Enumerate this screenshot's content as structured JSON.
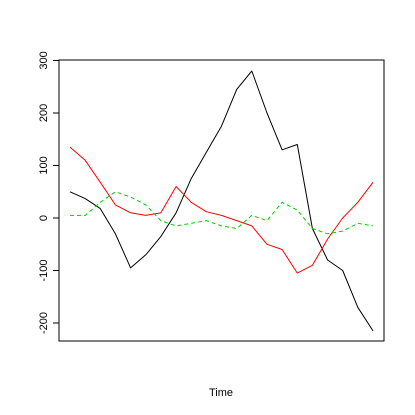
{
  "chart_data": {
    "type": "line",
    "title": "",
    "xlabel": "Time",
    "ylabel": "",
    "ylim": [
      -230,
      300
    ],
    "yticks": [
      300,
      200,
      100,
      0,
      -100,
      -200
    ],
    "x": [
      0,
      5,
      10,
      15,
      20,
      25,
      30,
      35,
      40,
      45,
      50,
      55,
      60,
      65,
      70,
      75,
      80,
      85,
      90,
      95,
      100
    ],
    "xlim": [
      0,
      100
    ],
    "grid": false,
    "legend": "none",
    "series": [
      {
        "color": "#000000",
        "linestyle": "solid",
        "values": [
          50,
          37,
          18,
          -30,
          -95,
          -70,
          -35,
          10,
          75,
          125,
          175,
          245,
          280,
          200,
          130,
          140,
          -20,
          -80,
          -100,
          -170,
          -215
        ]
      },
      {
        "color": "#ff0000",
        "linestyle": "solid",
        "values": [
          135,
          110,
          68,
          25,
          10,
          5,
          10,
          60,
          30,
          12,
          5,
          -5,
          -15,
          -50,
          -60,
          -105,
          -90,
          -40,
          0,
          30,
          68
        ]
      },
      {
        "color": "#00cd00",
        "linestyle": "dashed",
        "values": [
          5,
          5,
          30,
          50,
          40,
          25,
          -5,
          -15,
          -10,
          -5,
          -15,
          -20,
          5,
          -5,
          30,
          15,
          -20,
          -30,
          -25,
          -10,
          -15
        ]
      }
    ]
  }
}
